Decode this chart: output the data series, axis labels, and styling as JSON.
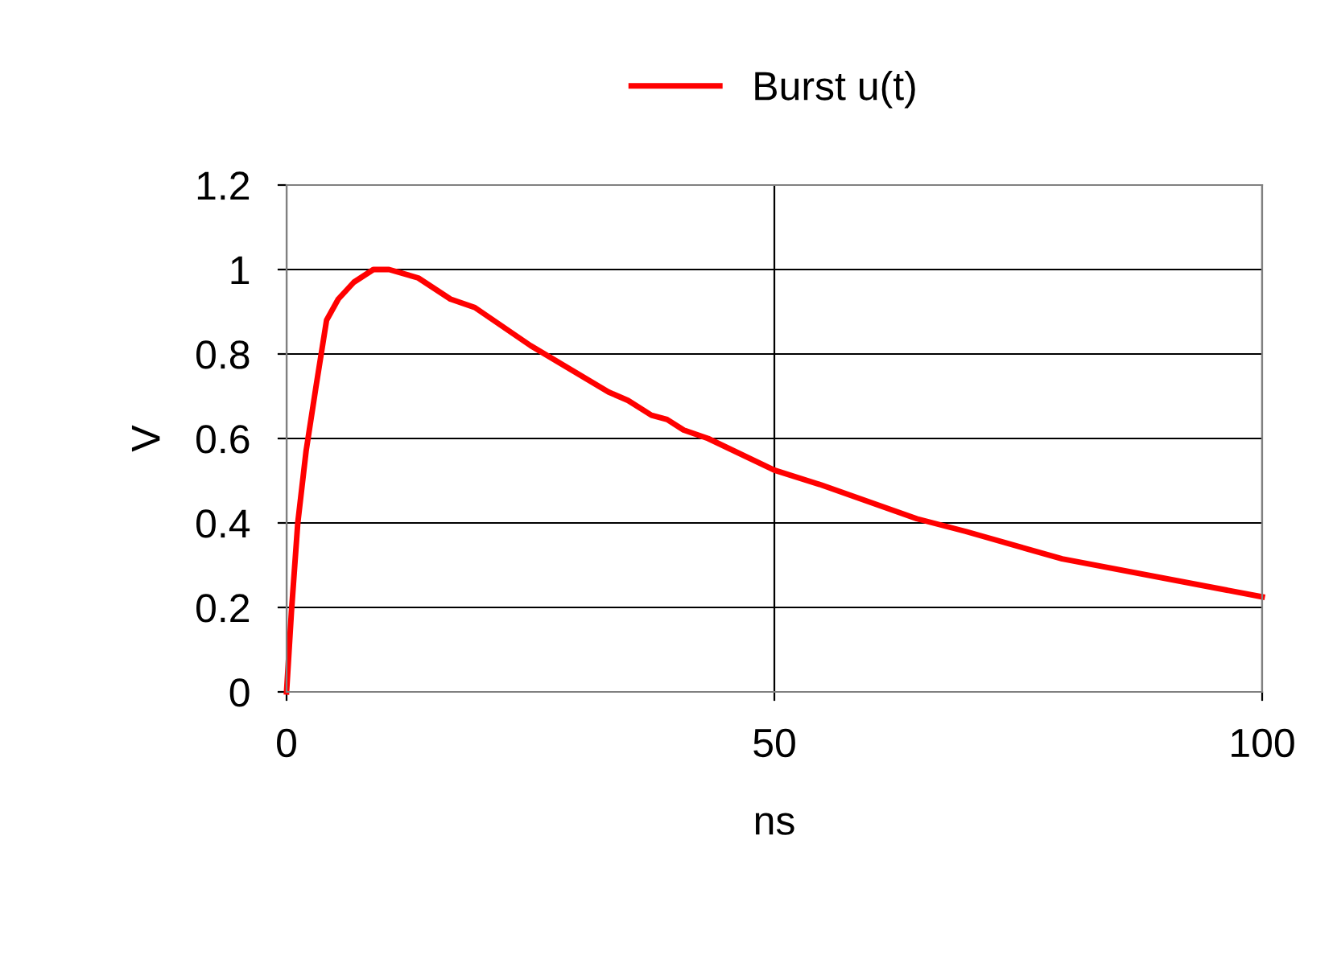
{
  "chart_data": {
    "type": "line",
    "xlabel": "ns",
    "ylabel": "V",
    "series": [
      {
        "name": "Burst u(t)",
        "color": "#ff0000",
        "x": [
          0,
          0.5,
          1.15,
          2,
          3,
          4.1,
          5.3,
          6.9,
          8.9,
          10.5,
          13.5,
          16.8,
          19.3,
          25,
          33,
          35,
          37.4,
          39,
          40.7,
          43.2,
          50,
          54.8,
          64.6,
          69.6,
          79.5,
          100
        ],
        "values": [
          0,
          0.19,
          0.4,
          0.57,
          0.72,
          0.88,
          0.93,
          0.97,
          1.0,
          1.0,
          0.98,
          0.93,
          0.91,
          0.82,
          0.71,
          0.69,
          0.655,
          0.645,
          0.62,
          0.6,
          0.525,
          0.49,
          0.41,
          0.38,
          0.315,
          0.225
        ]
      }
    ],
    "xlim": [
      0,
      100
    ],
    "xticks": [
      0,
      50,
      100
    ],
    "ylim": [
      0,
      1.2
    ],
    "yticks": [
      0,
      0.2,
      0.4,
      0.6,
      0.8,
      1,
      1.2
    ],
    "grid": true,
    "legend": "top",
    "marker": "none",
    "line_style": "solid"
  }
}
